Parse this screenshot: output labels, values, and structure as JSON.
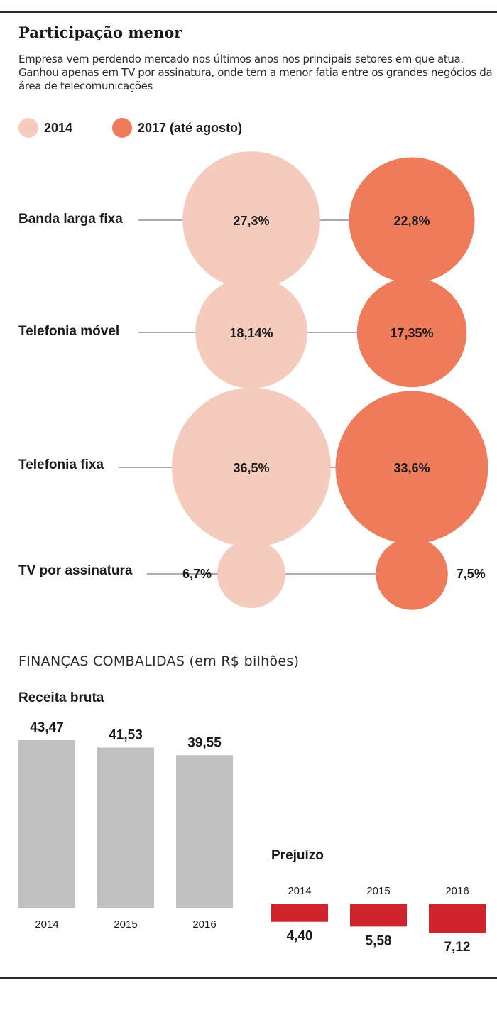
{
  "header": {
    "title": "Participação menor",
    "subtitle": "Empresa vem perdendo mercado nos últimos anos nos principais setores em que atua. Ganhou apenas em TV por assinatura, onde tem a menor fatia entre os grandes negócios da área de telecomunicações"
  },
  "colors": {
    "y2014": "#f5cbbd",
    "y2017": "#ee7b5a",
    "receita": "#c0c0c0",
    "prejuizo": "#d0232b"
  },
  "chart_data": [
    {
      "type": "bubble",
      "legend": [
        "2014",
        "2017 (até agosto)"
      ],
      "series": [
        {
          "name": "2014",
          "values": [
            27.3,
            18.14,
            36.5,
            6.7
          ],
          "labels": [
            "27,3%",
            "18,14%",
            "36,5%",
            "6,7%"
          ]
        },
        {
          "name": "2017 (até agosto)",
          "values": [
            22.8,
            17.35,
            33.6,
            7.5
          ],
          "labels": [
            "22,8%",
            "17,35%",
            "33,6%",
            "7,5%"
          ]
        }
      ],
      "categories": [
        "Banda larga fixa",
        "Telefonia móvel",
        "Telefonia fixa",
        "TV por assinatura"
      ]
    },
    {
      "type": "bar",
      "section_title": "FINANÇAS COMBALIDAS  (em R$ bilhões)",
      "title": "Receita bruta",
      "categories": [
        "2014",
        "2015",
        "2016"
      ],
      "values": [
        43.47,
        41.53,
        39.55
      ],
      "labels": [
        "43,47",
        "41,53",
        "39,55"
      ]
    },
    {
      "type": "bar",
      "title": "Prejuízo",
      "categories": [
        "2014",
        "2015",
        "2016"
      ],
      "values": [
        4.4,
        5.58,
        7.12
      ],
      "labels": [
        "4,40",
        "5,58",
        "7,12"
      ]
    }
  ]
}
